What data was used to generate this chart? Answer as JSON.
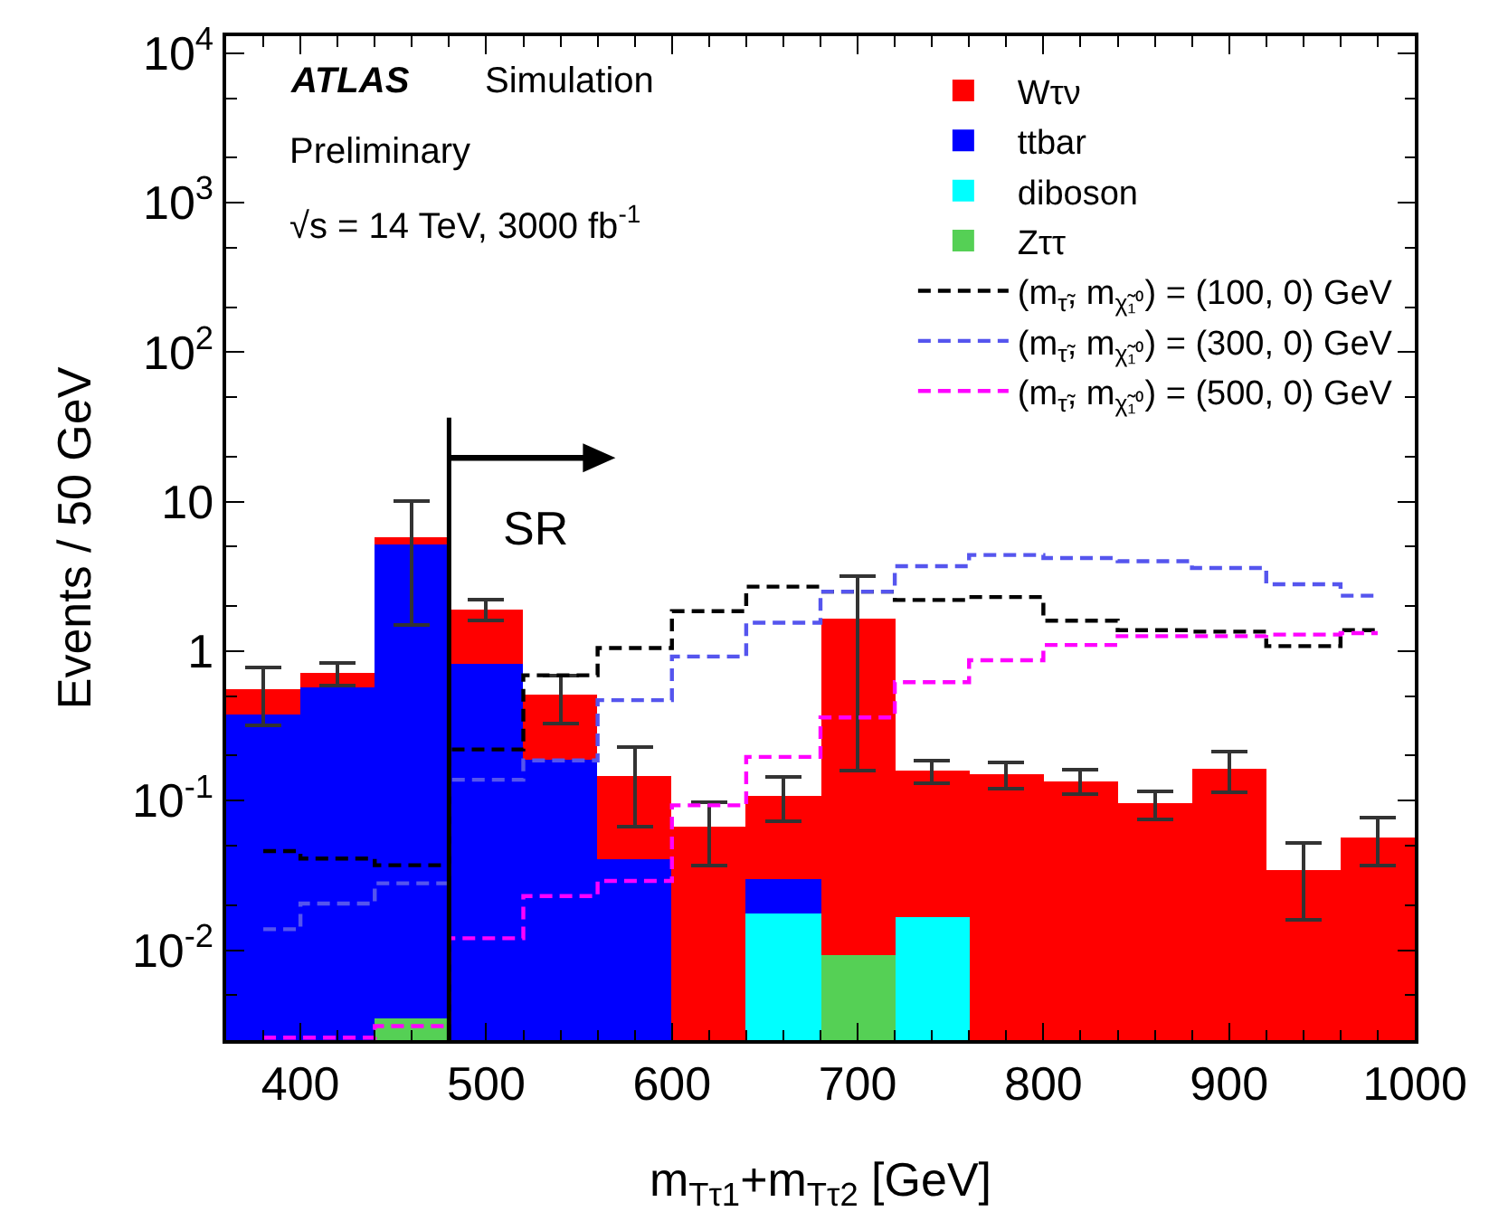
{
  "chart_data": {
    "type": "bar",
    "x": [
      380,
      420,
      460,
      500,
      540,
      580,
      620,
      660,
      700,
      740,
      780,
      820,
      860,
      900,
      940,
      980
    ],
    "stacked": true,
    "log": true,
    "legend": "top right",
    "xlabel": "m$_{Tτ1}$+m$_{Tτ2}$ [GeV]",
    "ylabel": "Events / 50 GeV",
    "xlim": [
      360,
      1000
    ],
    "xticks": [
      400,
      500,
      600,
      700,
      800,
      900,
      1000
    ],
    "ylim": [
      0.0025,
      13000
    ],
    "yticks": [
      {
        "value": 0.01,
        "label": "10$^{-2}$"
      },
      {
        "value": 0.1,
        "label": "10$^{-1}$"
      },
      1,
      10,
      {
        "value": 100,
        "label": "10$^{2}$"
      },
      {
        "value": 1000,
        "label": "10$^{3}$"
      },
      {
        "value": 10000,
        "label": "10$^{4}$"
      }
    ],
    "series": [
      {
        "name": "Zττ",
        "color": "#55d055",
        "values": [
          null,
          null,
          0.0035,
          null,
          null,
          null,
          null,
          null,
          0.0092,
          null,
          null,
          null,
          null,
          null,
          null,
          null
        ]
      },
      {
        "name": "diboson",
        "color": "#00ffff",
        "values": [
          null,
          null,
          null,
          null,
          null,
          null,
          null,
          0.0174,
          null,
          0.0166,
          null,
          null,
          null,
          null,
          null,
          null
        ]
      },
      {
        "name": "ttbar",
        "color": "#0000ff",
        "values": [
          0.38,
          0.58,
          5.2,
          0.83,
          0.186,
          0.04,
          null,
          0.0126,
          null,
          null,
          null,
          null,
          null,
          null,
          null,
          null
        ]
      },
      {
        "name": "Wτν",
        "color": "#ff0000",
        "values": [
          0.17,
          0.13,
          0.6,
          1.07,
          0.32,
          0.107,
          0.067,
          0.079,
          1.65,
          0.141,
          0.151,
          0.135,
          0.095,
          0.163,
          0.034,
          0.057
        ],
        "errors": [
          0.23,
          0.12,
          4.3,
          0.3,
          0.18,
          0.08,
          0.03,
          0.036,
          1.5,
          0.027,
          0.03,
          0.025,
          0.02,
          0.05,
          0.018,
          0.02
        ]
      },
      {
        "type": "step",
        "name": "(m$_{τ̃}$, m$_{χ̃₁⁰}$) = (100, 0) GeV",
        "color": "#000000",
        "line_style": "dashed",
        "values": [
          0.046,
          0.041,
          0.037,
          0.22,
          0.69,
          1.05,
          1.85,
          2.7,
          2.5,
          2.2,
          2.3,
          1.6,
          1.38,
          1.35,
          1.08,
          1.38
        ]
      },
      {
        "type": "step",
        "name": "(m$_{τ̃}$, m$_{χ̃₁⁰}$) = (300, 0) GeV",
        "color": "#5555ee",
        "line_style": "dashed",
        "values": [
          0.0138,
          0.0205,
          0.028,
          0.138,
          0.186,
          0.47,
          0.92,
          1.55,
          2.5,
          3.7,
          4.4,
          4.2,
          4.0,
          3.6,
          2.8,
          2.35
        ]
      },
      {
        "type": "step",
        "name": "(m$_{τ̃}$, m$_{χ̃₁⁰}$) = (500, 0) GeV",
        "color": "#ff00ff",
        "line_style": "dashed",
        "values": [
          0.0026,
          0.0026,
          0.0031,
          0.012,
          0.023,
          0.029,
          0.093,
          0.196,
          0.36,
          0.62,
          0.87,
          1.1,
          1.26,
          1.26,
          1.29,
          1.32
        ]
      }
    ],
    "ref_lines": [
      {
        "axis": "x",
        "value": 480,
        "color": "#000000"
      }
    ],
    "annotations": [
      "SR",
      "ATLAS",
      "Simulation",
      "Preliminary",
      "√s = 14 TeV, 3000 fb$^{-1}$"
    ]
  }
}
